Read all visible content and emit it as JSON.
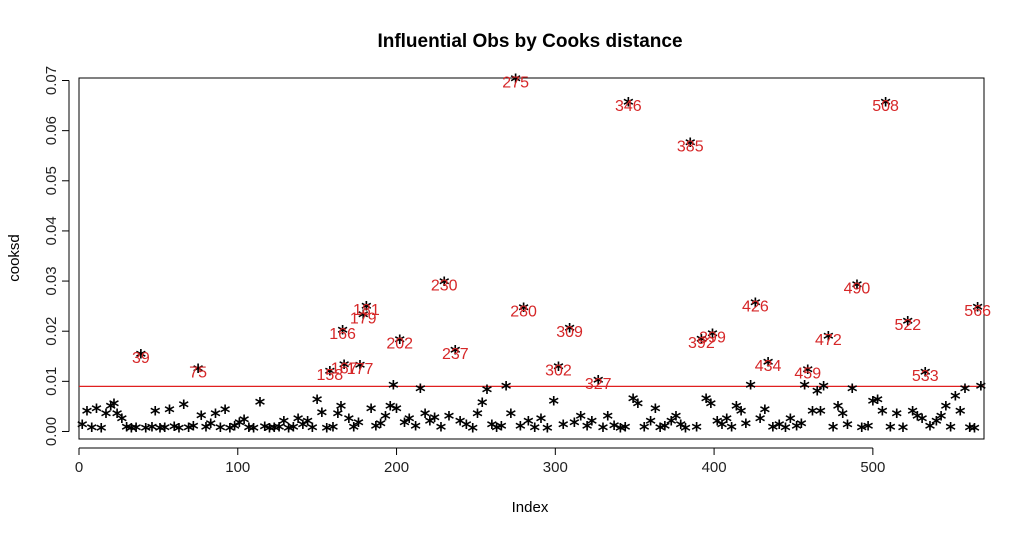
{
  "chart_data": {
    "type": "scatter",
    "title": "Influential Obs by Cooks distance",
    "xlabel": "Index",
    "ylabel": "cooksd",
    "xlim": [
      0,
      570
    ],
    "ylim": [
      -0.0015,
      0.0705
    ],
    "x_ticks": [
      0,
      100,
      200,
      300,
      400,
      500
    ],
    "y_ticks": [
      0.0,
      0.01,
      0.02,
      0.03,
      0.04,
      0.05,
      0.06,
      0.07
    ],
    "y_tick_labels": [
      "0.00",
      "0.01",
      "0.02",
      "0.03",
      "0.04",
      "0.05",
      "0.06",
      "0.07"
    ],
    "threshold": 0.009,
    "threshold_color": "#e02020",
    "point_color": "#000000",
    "label_color": "#d62728",
    "point_marker": "*",
    "labeled_points": [
      {
        "x": 39,
        "y": 0.0149,
        "label": "39"
      },
      {
        "x": 75,
        "y": 0.012,
        "label": "75"
      },
      {
        "x": 158,
        "y": 0.0115,
        "label": "158"
      },
      {
        "x": 166,
        "y": 0.0196,
        "label": "166"
      },
      {
        "x": 167,
        "y": 0.0128,
        "label": "167"
      },
      {
        "x": 177,
        "y": 0.0127,
        "label": "177"
      },
      {
        "x": 179,
        "y": 0.0227,
        "label": "179"
      },
      {
        "x": 181,
        "y": 0.0244,
        "label": "181"
      },
      {
        "x": 202,
        "y": 0.0177,
        "label": "202"
      },
      {
        "x": 230,
        "y": 0.0293,
        "label": "230"
      },
      {
        "x": 237,
        "y": 0.0157,
        "label": "237"
      },
      {
        "x": 275,
        "y": 0.0698,
        "label": "275"
      },
      {
        "x": 280,
        "y": 0.0241,
        "label": "280"
      },
      {
        "x": 302,
        "y": 0.0124,
        "label": "302"
      },
      {
        "x": 309,
        "y": 0.02,
        "label": "309"
      },
      {
        "x": 327,
        "y": 0.0097,
        "label": "327"
      },
      {
        "x": 346,
        "y": 0.0651,
        "label": "346"
      },
      {
        "x": 385,
        "y": 0.057,
        "label": "385"
      },
      {
        "x": 392,
        "y": 0.0178,
        "label": "392"
      },
      {
        "x": 399,
        "y": 0.0189,
        "label": "399"
      },
      {
        "x": 426,
        "y": 0.0251,
        "label": "426"
      },
      {
        "x": 434,
        "y": 0.0133,
        "label": "434"
      },
      {
        "x": 459,
        "y": 0.0118,
        "label": "459"
      },
      {
        "x": 472,
        "y": 0.0184,
        "label": "472"
      },
      {
        "x": 490,
        "y": 0.0287,
        "label": "490"
      },
      {
        "x": 508,
        "y": 0.0651,
        "label": "508"
      },
      {
        "x": 522,
        "y": 0.0214,
        "label": "522"
      },
      {
        "x": 533,
        "y": 0.0113,
        "label": "533"
      },
      {
        "x": 566,
        "y": 0.0242,
        "label": "566"
      }
    ],
    "other_points": [
      [
        2,
        0.0008
      ],
      [
        5,
        0.0035
      ],
      [
        8,
        0.0002
      ],
      [
        11,
        0.004
      ],
      [
        14,
        0.0001
      ],
      [
        17,
        0.003
      ],
      [
        20,
        0.0045
      ],
      [
        22,
        0.005
      ],
      [
        24,
        0.003
      ],
      [
        27,
        0.002
      ],
      [
        30,
        0.0003
      ],
      [
        33,
        0.0001
      ],
      [
        36,
        0.0002
      ],
      [
        42,
        0.0001
      ],
      [
        46,
        0.0003
      ],
      [
        48,
        0.0035
      ],
      [
        51,
        0.0001
      ],
      [
        54,
        0.0002
      ],
      [
        57,
        0.0038
      ],
      [
        60,
        0.0004
      ],
      [
        63,
        0.0001
      ],
      [
        66,
        0.0048
      ],
      [
        69,
        0.0002
      ],
      [
        72,
        0.0005
      ],
      [
        77,
        0.0026
      ],
      [
        80,
        0.0003
      ],
      [
        83,
        0.001
      ],
      [
        86,
        0.003
      ],
      [
        89,
        0.0002
      ],
      [
        92,
        0.0038
      ],
      [
        95,
        0.0001
      ],
      [
        98,
        0.0005
      ],
      [
        101,
        0.0012
      ],
      [
        104,
        0.0018
      ],
      [
        107,
        0.0002
      ],
      [
        110,
        0.0001
      ],
      [
        114,
        0.0053
      ],
      [
        117,
        0.0004
      ],
      [
        120,
        0.0001
      ],
      [
        123,
        0.0002
      ],
      [
        126,
        0.0003
      ],
      [
        129,
        0.0015
      ],
      [
        132,
        0.0001
      ],
      [
        135,
        0.0003
      ],
      [
        138,
        0.002
      ],
      [
        141,
        0.0008
      ],
      [
        144,
        0.0015
      ],
      [
        147,
        0.0002
      ],
      [
        150,
        0.0058
      ],
      [
        153,
        0.0032
      ],
      [
        156,
        0.0001
      ],
      [
        160,
        0.0003
      ],
      [
        163,
        0.003
      ],
      [
        165,
        0.0045
      ],
      [
        170,
        0.002
      ],
      [
        173,
        0.0003
      ],
      [
        176,
        0.0012
      ],
      [
        184,
        0.004
      ],
      [
        187,
        0.0005
      ],
      [
        190,
        0.001
      ],
      [
        193,
        0.0025
      ],
      [
        196,
        0.0045
      ],
      [
        198,
        0.0087
      ],
      [
        200,
        0.004
      ],
      [
        205,
        0.0012
      ],
      [
        208,
        0.002
      ],
      [
        212,
        0.0005
      ],
      [
        215,
        0.008
      ],
      [
        218,
        0.003
      ],
      [
        221,
        0.0015
      ],
      [
        224,
        0.0022
      ],
      [
        228,
        0.0003
      ],
      [
        233,
        0.0025
      ],
      [
        240,
        0.0015
      ],
      [
        244,
        0.0008
      ],
      [
        248,
        0.0001
      ],
      [
        251,
        0.003
      ],
      [
        254,
        0.0052
      ],
      [
        257,
        0.0078
      ],
      [
        260,
        0.0008
      ],
      [
        263,
        0.0002
      ],
      [
        266,
        0.0005
      ],
      [
        269,
        0.0085
      ],
      [
        272,
        0.003
      ],
      [
        278,
        0.0005
      ],
      [
        283,
        0.0015
      ],
      [
        287,
        0.0002
      ],
      [
        291,
        0.002
      ],
      [
        295,
        0.0001
      ],
      [
        299,
        0.0055
      ],
      [
        305,
        0.0008
      ],
      [
        312,
        0.0012
      ],
      [
        316,
        0.0025
      ],
      [
        320,
        0.0005
      ],
      [
        323,
        0.0015
      ],
      [
        330,
        0.0002
      ],
      [
        333,
        0.0025
      ],
      [
        337,
        0.0006
      ],
      [
        341,
        0.0001
      ],
      [
        344,
        0.0003
      ],
      [
        349,
        0.006
      ],
      [
        352,
        0.005
      ],
      [
        356,
        0.0003
      ],
      [
        360,
        0.0015
      ],
      [
        363,
        0.004
      ],
      [
        366,
        0.0002
      ],
      [
        369,
        0.0005
      ],
      [
        373,
        0.0015
      ],
      [
        376,
        0.0025
      ],
      [
        379,
        0.0008
      ],
      [
        382,
        0.0001
      ],
      [
        389,
        0.0003
      ],
      [
        395,
        0.006
      ],
      [
        398,
        0.005
      ],
      [
        402,
        0.0015
      ],
      [
        405,
        0.0008
      ],
      [
        408,
        0.002
      ],
      [
        411,
        0.0003
      ],
      [
        414,
        0.0045
      ],
      [
        417,
        0.0035
      ],
      [
        420,
        0.001
      ],
      [
        423,
        0.0087
      ],
      [
        429,
        0.002
      ],
      [
        432,
        0.0038
      ],
      [
        437,
        0.0003
      ],
      [
        441,
        0.0008
      ],
      [
        445,
        0.0002
      ],
      [
        448,
        0.002
      ],
      [
        452,
        0.0005
      ],
      [
        455,
        0.001
      ],
      [
        457,
        0.0087
      ],
      [
        462,
        0.0035
      ],
      [
        465,
        0.0075
      ],
      [
        467,
        0.0035
      ],
      [
        469,
        0.0085
      ],
      [
        475,
        0.0003
      ],
      [
        478,
        0.0045
      ],
      [
        481,
        0.003
      ],
      [
        484,
        0.0008
      ],
      [
        487,
        0.008
      ],
      [
        493,
        0.0002
      ],
      [
        497,
        0.0005
      ],
      [
        500,
        0.0055
      ],
      [
        503,
        0.0058
      ],
      [
        506,
        0.0035
      ],
      [
        511,
        0.0003
      ],
      [
        515,
        0.003
      ],
      [
        519,
        0.0002
      ],
      [
        525,
        0.0035
      ],
      [
        528,
        0.0025
      ],
      [
        531,
        0.002
      ],
      [
        536,
        0.0005
      ],
      [
        540,
        0.0015
      ],
      [
        543,
        0.0025
      ],
      [
        546,
        0.0045
      ],
      [
        549,
        0.0003
      ],
      [
        552,
        0.0065
      ],
      [
        555,
        0.0035
      ],
      [
        558,
        0.008
      ],
      [
        561,
        0.0002
      ],
      [
        564,
        0.0001
      ],
      [
        568,
        0.0085
      ]
    ]
  }
}
